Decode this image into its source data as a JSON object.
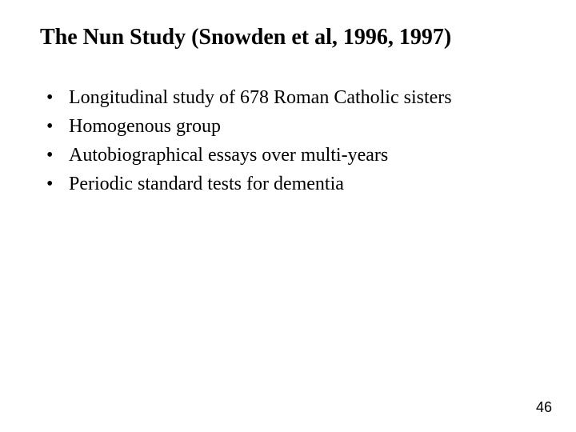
{
  "title": "The Nun Study (Snowden et al, 1996, 1997)",
  "bullets": [
    "Longitudinal study of 678 Roman Catholic sisters",
    "Homogenous group",
    "Autobiographical essays over multi-years",
    "Periodic standard tests for dementia"
  ],
  "page_number": "46",
  "colors": {
    "background": "#ffffff",
    "text": "#000000"
  },
  "typography": {
    "title_fontsize_pt": 28,
    "title_weight": "bold",
    "body_fontsize_pt": 24,
    "font_family": "Times New Roman"
  }
}
